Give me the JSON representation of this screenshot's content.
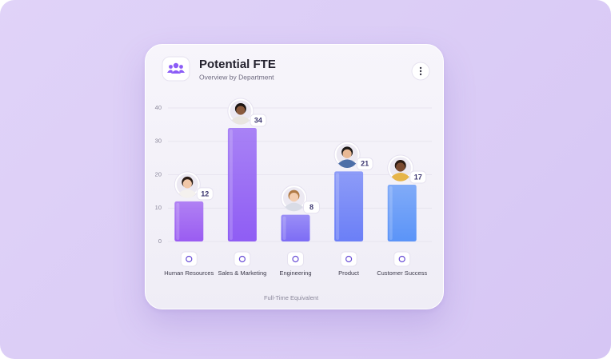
{
  "chart_data": {
    "type": "bar",
    "title": "Potential FTE",
    "subtitle": "Overview by Department",
    "x_label": "Full-Time Equivalent",
    "categories": [
      "Human Resources",
      "Sales & Marketing",
      "Engineering",
      "Product",
      "Customer Success"
    ],
    "values": [
      12,
      34,
      8,
      21,
      17
    ],
    "colors": [
      "#9a5cf2",
      "#8f5df4",
      "#7d6df5",
      "#6b7ff7",
      "#5b94f8"
    ],
    "ylim": [
      0,
      40
    ],
    "yticks": [
      0,
      10,
      20,
      30,
      40
    ],
    "grid": true
  }
}
